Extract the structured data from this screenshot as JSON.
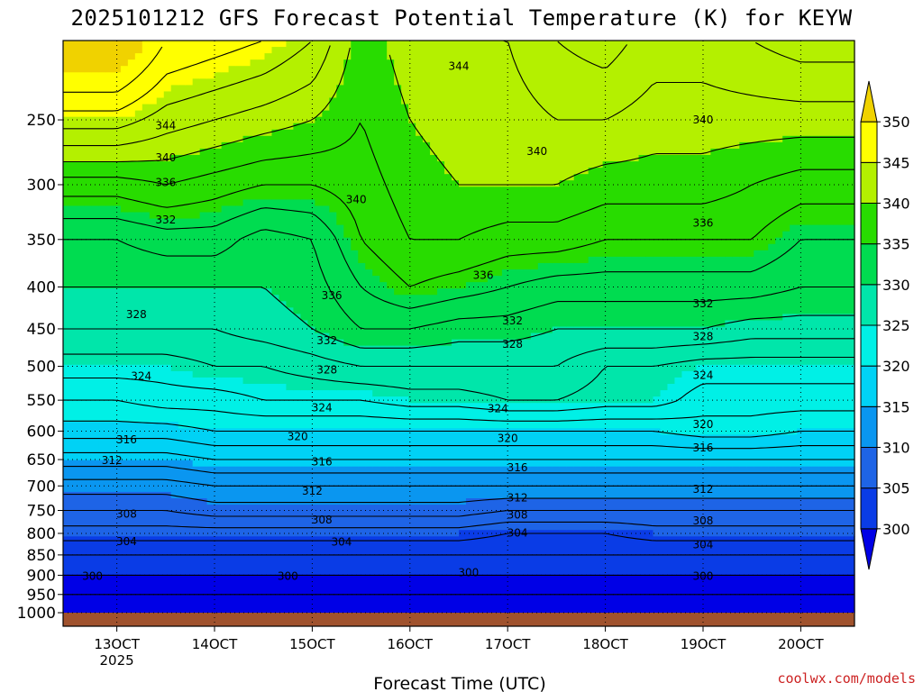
{
  "title": "2025101212 GFS Forecast Potential Temperature (K) for KEYW",
  "credit": "coolwx.com/models",
  "chart_data": {
    "type": "heatmap",
    "title": "2025101212 GFS Forecast Potential Temperature (K) for KEYW",
    "xlabel": "Forecast Time (UTC)",
    "ylabel": "",
    "x_ticks": [
      "13OCT",
      "14OCT",
      "15OCT",
      "16OCT",
      "17OCT",
      "18OCT",
      "19OCT",
      "20OCT"
    ],
    "x_year": "2025",
    "y_ticks": [
      "250",
      "300",
      "350",
      "400",
      "450",
      "500",
      "550",
      "600",
      "650",
      "700",
      "750",
      "800",
      "850",
      "900",
      "950",
      "1000"
    ],
    "y_range_hpa": [
      200,
      1000
    ],
    "colorbar": {
      "ticks": [
        "300",
        "305",
        "310",
        "315",
        "320",
        "325",
        "330",
        "335",
        "340",
        "345",
        "350"
      ],
      "bands": [
        {
          "from": 295,
          "to": 300,
          "color": "#0000e6"
        },
        {
          "from": 300,
          "to": 305,
          "color": "#0a3ce6"
        },
        {
          "from": 305,
          "to": 310,
          "color": "#1e64e6"
        },
        {
          "from": 310,
          "to": 315,
          "color": "#0a96f0"
        },
        {
          "from": 315,
          "to": 320,
          "color": "#00d2f5"
        },
        {
          "from": 320,
          "to": 325,
          "color": "#00f0e6"
        },
        {
          "from": 325,
          "to": 330,
          "color": "#00e6aa"
        },
        {
          "from": 330,
          "to": 335,
          "color": "#00dc50"
        },
        {
          "from": 335,
          "to": 340,
          "color": "#28dc00"
        },
        {
          "from": 340,
          "to": 345,
          "color": "#b4f000"
        },
        {
          "from": 345,
          "to": 350,
          "color": "#ffff00"
        },
        {
          "from": 350,
          "to": 355,
          "color": "#f0d200"
        }
      ]
    },
    "time_series_x": [
      0,
      0.5,
      1,
      1.5,
      2,
      2.5,
      3,
      3.5,
      4,
      4.5,
      5,
      5.5,
      6,
      6.5,
      7,
      7.5
    ],
    "theta_profiles": [
      {
        "level": 250,
        "values": [
          345,
          343,
          342,
          341,
          340,
          338,
          340,
          341,
          341,
          342,
          342,
          341,
          341,
          341,
          341,
          341
        ]
      },
      {
        "level": 300,
        "values": [
          337,
          338,
          337,
          336,
          336,
          337,
          339,
          340,
          340,
          340,
          339,
          339,
          339,
          338,
          337,
          337
        ]
      },
      {
        "level": 350,
        "values": [
          332,
          333,
          333,
          331,
          332,
          336,
          338,
          338,
          337,
          337,
          336,
          336,
          336,
          336,
          334,
          334
        ]
      },
      {
        "level": 400,
        "values": [
          330,
          330,
          330,
          330,
          331,
          334,
          336,
          335,
          334,
          333,
          333,
          333,
          333,
          333,
          332,
          332
        ]
      },
      {
        "level": 450,
        "values": [
          328,
          328,
          328,
          329,
          330,
          332,
          332,
          331,
          331,
          330,
          330,
          330,
          330,
          329,
          329,
          329
        ]
      },
      {
        "level": 500,
        "values": [
          325,
          325,
          326,
          326,
          327,
          328,
          328,
          328,
          328,
          328,
          326,
          326,
          325,
          325,
          325,
          325
        ]
      },
      {
        "level": 550,
        "values": [
          322,
          323,
          323,
          324,
          324,
          324,
          325,
          325,
          326,
          326,
          325,
          325,
          323,
          323,
          323,
          323
        ]
      },
      {
        "level": 600,
        "values": [
          319,
          319,
          320,
          320,
          320,
          320,
          320,
          320,
          320,
          320,
          320,
          320,
          321,
          321,
          320,
          320
        ]
      },
      {
        "level": 650,
        "values": [
          315,
          315,
          316,
          316,
          316,
          316,
          316,
          316,
          316,
          316,
          316,
          316,
          316,
          316,
          316,
          316
        ]
      },
      {
        "level": 700,
        "values": [
          311,
          311,
          312,
          312,
          312,
          312,
          312,
          312,
          312,
          312,
          312,
          312,
          312,
          312,
          312,
          312
        ]
      },
      {
        "level": 750,
        "values": [
          308,
          308,
          309,
          309,
          309,
          309,
          309,
          309,
          308,
          308,
          308,
          308,
          308,
          308,
          308,
          308
        ]
      },
      {
        "level": 800,
        "values": [
          305,
          305,
          305,
          305,
          305,
          305,
          305,
          305,
          304,
          304,
          304,
          305,
          305,
          305,
          305,
          305
        ]
      },
      {
        "level": 850,
        "values": [
          302,
          302,
          302,
          302,
          302,
          302,
          302,
          302,
          302,
          302,
          302,
          302,
          302,
          302,
          302,
          302
        ]
      },
      {
        "level": 900,
        "values": [
          300,
          300,
          300,
          300,
          300,
          300,
          300,
          300,
          300,
          300,
          300,
          300,
          300,
          300,
          300,
          300
        ]
      },
      {
        "level": 950,
        "values": [
          298,
          298,
          298,
          298,
          298,
          298,
          298,
          298,
          298,
          298,
          298,
          298,
          298,
          298,
          298,
          298
        ]
      },
      {
        "level": 1000,
        "values": [
          298,
          298,
          298,
          298,
          298,
          298,
          298,
          298,
          298,
          298,
          298,
          298,
          298,
          298,
          298,
          298
        ]
      }
    ],
    "contour_labels": [
      {
        "text": "344",
        "t": 3.5,
        "p": 215
      },
      {
        "text": "344",
        "t": 0.5,
        "p": 254
      },
      {
        "text": "340",
        "t": 6.0,
        "p": 250
      },
      {
        "text": "340",
        "t": 4.3,
        "p": 273
      },
      {
        "text": "340",
        "t": 0.5,
        "p": 278
      },
      {
        "text": "340",
        "t": 2.45,
        "p": 313
      },
      {
        "text": "336",
        "t": 0.5,
        "p": 298
      },
      {
        "text": "336",
        "t": 6.0,
        "p": 334
      },
      {
        "text": "336",
        "t": 3.75,
        "p": 387
      },
      {
        "text": "336",
        "t": 2.2,
        "p": 410
      },
      {
        "text": "332",
        "t": 0.5,
        "p": 331
      },
      {
        "text": "332",
        "t": 6.0,
        "p": 419
      },
      {
        "text": "332",
        "t": 4.05,
        "p": 440
      },
      {
        "text": "332",
        "t": 2.15,
        "p": 465
      },
      {
        "text": "328",
        "t": 0.2,
        "p": 432
      },
      {
        "text": "328",
        "t": 6.0,
        "p": 460
      },
      {
        "text": "328",
        "t": 4.05,
        "p": 470
      },
      {
        "text": "328",
        "t": 2.15,
        "p": 505
      },
      {
        "text": "324",
        "t": 0.25,
        "p": 514
      },
      {
        "text": "324",
        "t": 6.0,
        "p": 513
      },
      {
        "text": "324",
        "t": 3.9,
        "p": 563
      },
      {
        "text": "324",
        "t": 2.1,
        "p": 562
      },
      {
        "text": "320",
        "t": 6.0,
        "p": 589
      },
      {
        "text": "320",
        "t": 1.85,
        "p": 609
      },
      {
        "text": "320",
        "t": 4.0,
        "p": 612
      },
      {
        "text": "316",
        "t": 0.1,
        "p": 615
      },
      {
        "text": "316",
        "t": 6.0,
        "p": 629
      },
      {
        "text": "316",
        "t": 2.1,
        "p": 654
      },
      {
        "text": "316",
        "t": 4.1,
        "p": 665
      },
      {
        "text": "312",
        "t": -0.05,
        "p": 652
      },
      {
        "text": "312",
        "t": 6.0,
        "p": 707
      },
      {
        "text": "312",
        "t": 2.0,
        "p": 710
      },
      {
        "text": "312",
        "t": 4.1,
        "p": 724
      },
      {
        "text": "308",
        "t": 0.1,
        "p": 758
      },
      {
        "text": "308",
        "t": 2.1,
        "p": 770
      },
      {
        "text": "308",
        "t": 4.1,
        "p": 760
      },
      {
        "text": "308",
        "t": 6.0,
        "p": 772
      },
      {
        "text": "304",
        "t": 0.1,
        "p": 819
      },
      {
        "text": "304",
        "t": 2.3,
        "p": 820
      },
      {
        "text": "304",
        "t": 4.1,
        "p": 799
      },
      {
        "text": "304",
        "t": 6.0,
        "p": 826
      },
      {
        "text": "300",
        "t": -0.25,
        "p": 902
      },
      {
        "text": "300",
        "t": 1.75,
        "p": 902
      },
      {
        "text": "300",
        "t": 3.6,
        "p": 893
      },
      {
        "text": "300",
        "t": 6.0,
        "p": 902
      }
    ]
  }
}
